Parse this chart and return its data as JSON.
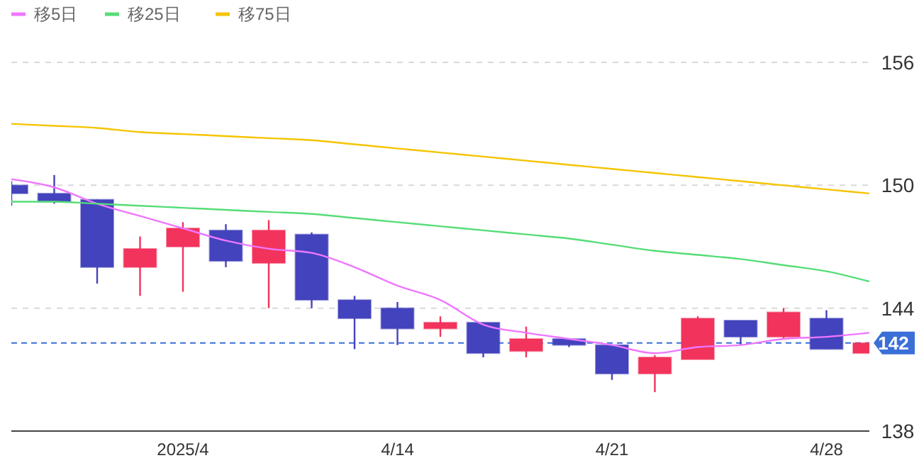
{
  "chart_data": {
    "type": "candlestick",
    "categories": [
      null,
      null,
      null,
      null,
      "2025/4",
      null,
      null,
      null,
      null,
      "4/14",
      null,
      null,
      null,
      null,
      "4/21",
      null,
      null,
      null,
      null,
      "4/28",
      null
    ],
    "ohlc": [
      [
        150.0,
        150.2,
        149.0,
        149.6
      ],
      [
        149.6,
        150.5,
        149.1,
        149.2
      ],
      [
        149.3,
        149.3,
        145.2,
        146.0
      ],
      [
        146.0,
        147.5,
        144.6,
        146.9
      ],
      [
        147.0,
        148.2,
        144.8,
        147.9
      ],
      [
        147.8,
        148.1,
        146.0,
        146.3
      ],
      [
        146.2,
        148.3,
        144.0,
        147.8
      ],
      [
        147.6,
        147.7,
        144.0,
        144.4
      ],
      [
        144.4,
        144.6,
        142.0,
        143.5
      ],
      [
        144.0,
        144.3,
        142.2,
        143.0
      ],
      [
        143.0,
        143.6,
        142.6,
        143.3
      ],
      [
        143.3,
        143.3,
        141.6,
        141.8
      ],
      [
        141.9,
        143.1,
        141.6,
        142.5
      ],
      [
        142.5,
        142.5,
        142.1,
        142.2
      ],
      [
        142.2,
        142.2,
        140.5,
        140.8
      ],
      [
        140.8,
        141.7,
        139.9,
        141.6
      ],
      [
        141.5,
        143.6,
        141.5,
        143.5
      ],
      [
        143.4,
        143.4,
        142.2,
        142.6
      ],
      [
        142.6,
        144.0,
        142.5,
        143.8
      ],
      [
        143.5,
        143.9,
        142.0,
        142.0
      ],
      [
        141.8,
        142.3,
        141.8,
        142.3
      ]
    ],
    "colors": [
      "#4343bd",
      "#4343bd",
      "#4343bd",
      "#f2335c",
      "#f2335c",
      "#4343bd",
      "#f2335c",
      "#4343bd",
      "#4343bd",
      "#4343bd",
      "#f2335c",
      "#4343bd",
      "#f2335c",
      "#4343bd",
      "#4343bd",
      "#f2335c",
      "#f2335c",
      "#4343bd",
      "#f2335c",
      "#4343bd",
      "#f2335c"
    ],
    "series": [
      {
        "name": "移5日",
        "type": "line",
        "color": "#ee77ff",
        "values": [
          150.3,
          149.9,
          149.1,
          148.5,
          147.9,
          147.3,
          146.9,
          146.7,
          146.0,
          145.1,
          144.4,
          143.2,
          142.8,
          142.5,
          142.2,
          141.8,
          142.1,
          142.2,
          142.5,
          142.6,
          142.8
        ]
      },
      {
        "name": "移25日",
        "type": "line",
        "color": "#55dd77",
        "values": [
          149.2,
          149.2,
          149.1,
          149.0,
          148.9,
          148.8,
          148.7,
          148.6,
          148.4,
          148.2,
          148.0,
          147.8,
          147.6,
          147.4,
          147.1,
          146.8,
          146.6,
          146.4,
          146.1,
          145.8,
          145.3
        ]
      },
      {
        "name": "移75日",
        "type": "line",
        "color": "#f5c400",
        "values": [
          153.0,
          152.9,
          152.8,
          152.6,
          152.5,
          152.4,
          152.3,
          152.2,
          152.0,
          151.8,
          151.6,
          151.4,
          151.2,
          151.0,
          150.8,
          150.6,
          150.4,
          150.2,
          150.0,
          149.8,
          149.6
        ]
      }
    ],
    "ylim": [
      138,
      156
    ],
    "yticks": [
      138,
      144,
      150,
      156
    ],
    "grid": "y",
    "legend": "top left",
    "ref_lines": [
      {
        "axis": "y",
        "value": 142.3,
        "label": "142",
        "color": "#3b6fd8",
        "line_style": "dashed"
      }
    ]
  }
}
